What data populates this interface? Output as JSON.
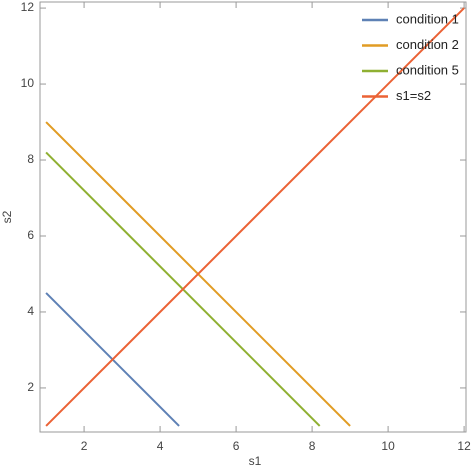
{
  "chart_data": {
    "type": "line",
    "x_label": "s1",
    "y_label": "s2",
    "xlim": [
      0.84,
      12.05
    ],
    "ylim": [
      0.84,
      12.16
    ],
    "xticks": [
      2,
      4,
      6,
      8,
      10,
      12
    ],
    "yticks": [
      2,
      4,
      6,
      8,
      10,
      12
    ],
    "legend": "top-right",
    "series": [
      {
        "name": "condition 1",
        "color": "#5e81b5",
        "x": [
          1,
          4.5
        ],
        "values": [
          4.5,
          1
        ]
      },
      {
        "name": "condition 2",
        "color": "#e19c24",
        "x": [
          1,
          9
        ],
        "values": [
          9,
          1
        ]
      },
      {
        "name": "condition 5",
        "color": "#8fb032",
        "x": [
          1,
          8.2
        ],
        "values": [
          8.2,
          1
        ]
      },
      {
        "name": "s1=s2",
        "color": "#eb6235",
        "x": [
          1,
          12
        ],
        "values": [
          1,
          12
        ]
      }
    ]
  }
}
